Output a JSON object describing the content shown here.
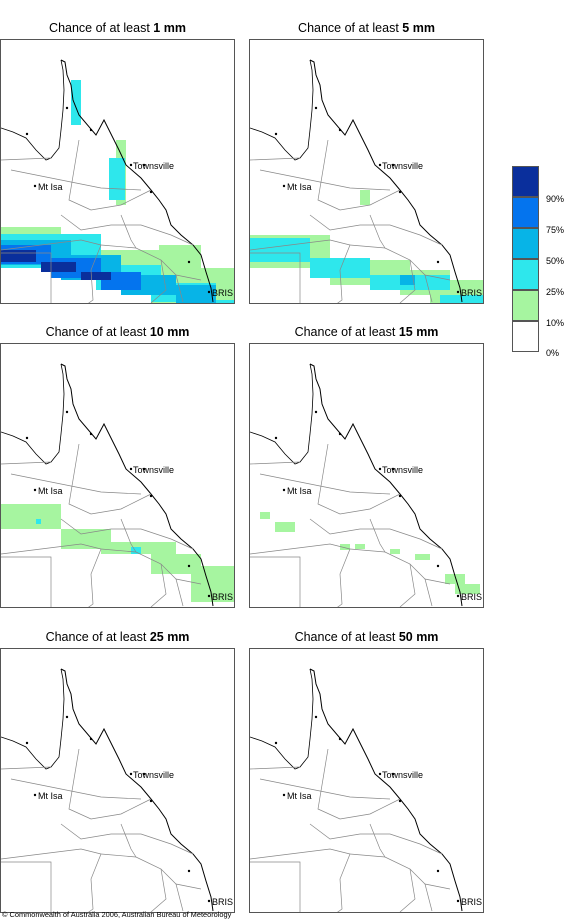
{
  "panels": [
    {
      "prefix": "Chance of at least",
      "amount": "1 mm",
      "layers": [
        {
          "color": "#a6f5a0",
          "cells": [
            [
              0,
              187,
              60,
              205
            ],
            [
              60,
              210,
              160,
              240
            ],
            [
              150,
              228,
              215,
              265
            ],
            [
              158,
              205,
              200,
              235
            ],
            [
              170,
              228,
              235,
              265
            ],
            [
              115,
              100,
              125,
              165
            ]
          ]
        },
        {
          "color": "#2ee7ec",
          "cells": [
            [
              0,
              194,
              100,
              228
            ],
            [
              95,
              225,
              160,
              250
            ],
            [
              150,
              243,
              215,
              262
            ],
            [
              180,
              260,
              235,
              275
            ],
            [
              108,
              118,
              124,
              160
            ],
            [
              70,
              40,
              80,
              85
            ]
          ]
        },
        {
          "color": "#07b4e7",
          "cells": [
            [
              0,
              200,
              70,
              225
            ],
            [
              60,
              215,
              120,
              240
            ],
            [
              120,
              235,
              175,
              255
            ],
            [
              175,
              245,
              215,
              270
            ],
            [
              205,
              270,
              235,
              282
            ]
          ]
        },
        {
          "color": "#0474ee",
          "cells": [
            [
              0,
              205,
              50,
              224
            ],
            [
              50,
              218,
              100,
              238
            ],
            [
              100,
              232,
              140,
              250
            ],
            [
              195,
              275,
              235,
              288
            ]
          ]
        },
        {
          "color": "#0a2f9c",
          "cells": [
            [
              0,
              210,
              35,
              222
            ],
            [
              40,
              222,
              75,
              232
            ],
            [
              80,
              232,
              110,
              240
            ],
            [
              210,
              282,
              235,
              292
            ]
          ]
        }
      ]
    },
    {
      "prefix": "Chance of at least",
      "amount": "5 mm",
      "layers": [
        {
          "color": "#a6f5a0",
          "cells": [
            [
              0,
              195,
              80,
              228
            ],
            [
              80,
              220,
              160,
              245
            ],
            [
              150,
              230,
              200,
              255
            ],
            [
              180,
              240,
              235,
              275
            ],
            [
              130,
              270,
              200,
              280
            ],
            [
              110,
              150,
              120,
              165
            ]
          ]
        },
        {
          "color": "#2ee7ec",
          "cells": [
            [
              0,
              198,
              60,
              222
            ],
            [
              60,
              218,
              120,
              238
            ],
            [
              120,
              235,
              200,
              250
            ],
            [
              190,
              255,
              235,
              270
            ]
          ]
        },
        {
          "color": "#07b4e7",
          "cells": [
            [
              150,
              235,
              165,
              245
            ],
            [
              210,
              268,
              225,
              280
            ]
          ]
        }
      ]
    },
    {
      "prefix": "Chance of at least",
      "amount": "10 mm",
      "layers": [
        {
          "color": "#a6f5a0",
          "cells": [
            [
              0,
              160,
              60,
              185
            ],
            [
              60,
              185,
              110,
              205
            ],
            [
              100,
              198,
              175,
              210
            ],
            [
              150,
              210,
              200,
              230
            ],
            [
              190,
              222,
              235,
              258
            ]
          ]
        },
        {
          "color": "#2ee7ec",
          "cells": [
            [
              35,
              175,
              40,
              180
            ],
            [
              130,
              203,
              140,
              210
            ]
          ]
        }
      ]
    },
    {
      "prefix": "Chance of at least",
      "amount": "15 mm",
      "layers": [
        {
          "color": "#a6f5a0",
          "cells": [
            [
              10,
              168,
              20,
              175
            ],
            [
              25,
              178,
              45,
              188
            ],
            [
              90,
              200,
              100,
              206
            ],
            [
              105,
              200,
              115,
              205
            ],
            [
              140,
              205,
              150,
              210
            ],
            [
              165,
              210,
              180,
              216
            ],
            [
              195,
              230,
              215,
              240
            ],
            [
              205,
              240,
              230,
              250
            ]
          ]
        }
      ]
    },
    {
      "prefix": "Chance of at least",
      "amount": "25 mm",
      "layers": []
    },
    {
      "prefix": "Chance of at least",
      "amount": "50 mm",
      "layers": []
    }
  ],
  "places": {
    "townsville": "Townsville",
    "mtisa": "Mt Isa",
    "brisbane": "BRIS"
  },
  "legend": [
    {
      "label": "90%",
      "color": "#0a2f9c"
    },
    {
      "label": "75%",
      "color": "#0474ee"
    },
    {
      "label": "50%",
      "color": "#07b4e7"
    },
    {
      "label": "25%",
      "color": "#2ee7ec"
    },
    {
      "label": "10%",
      "color": "#a6f5a0"
    },
    {
      "label": "0%",
      "color": "#ffffff"
    }
  ],
  "copyright": "© Commonwealth of Australia 2006, Australian Bureau of Meteorology"
}
